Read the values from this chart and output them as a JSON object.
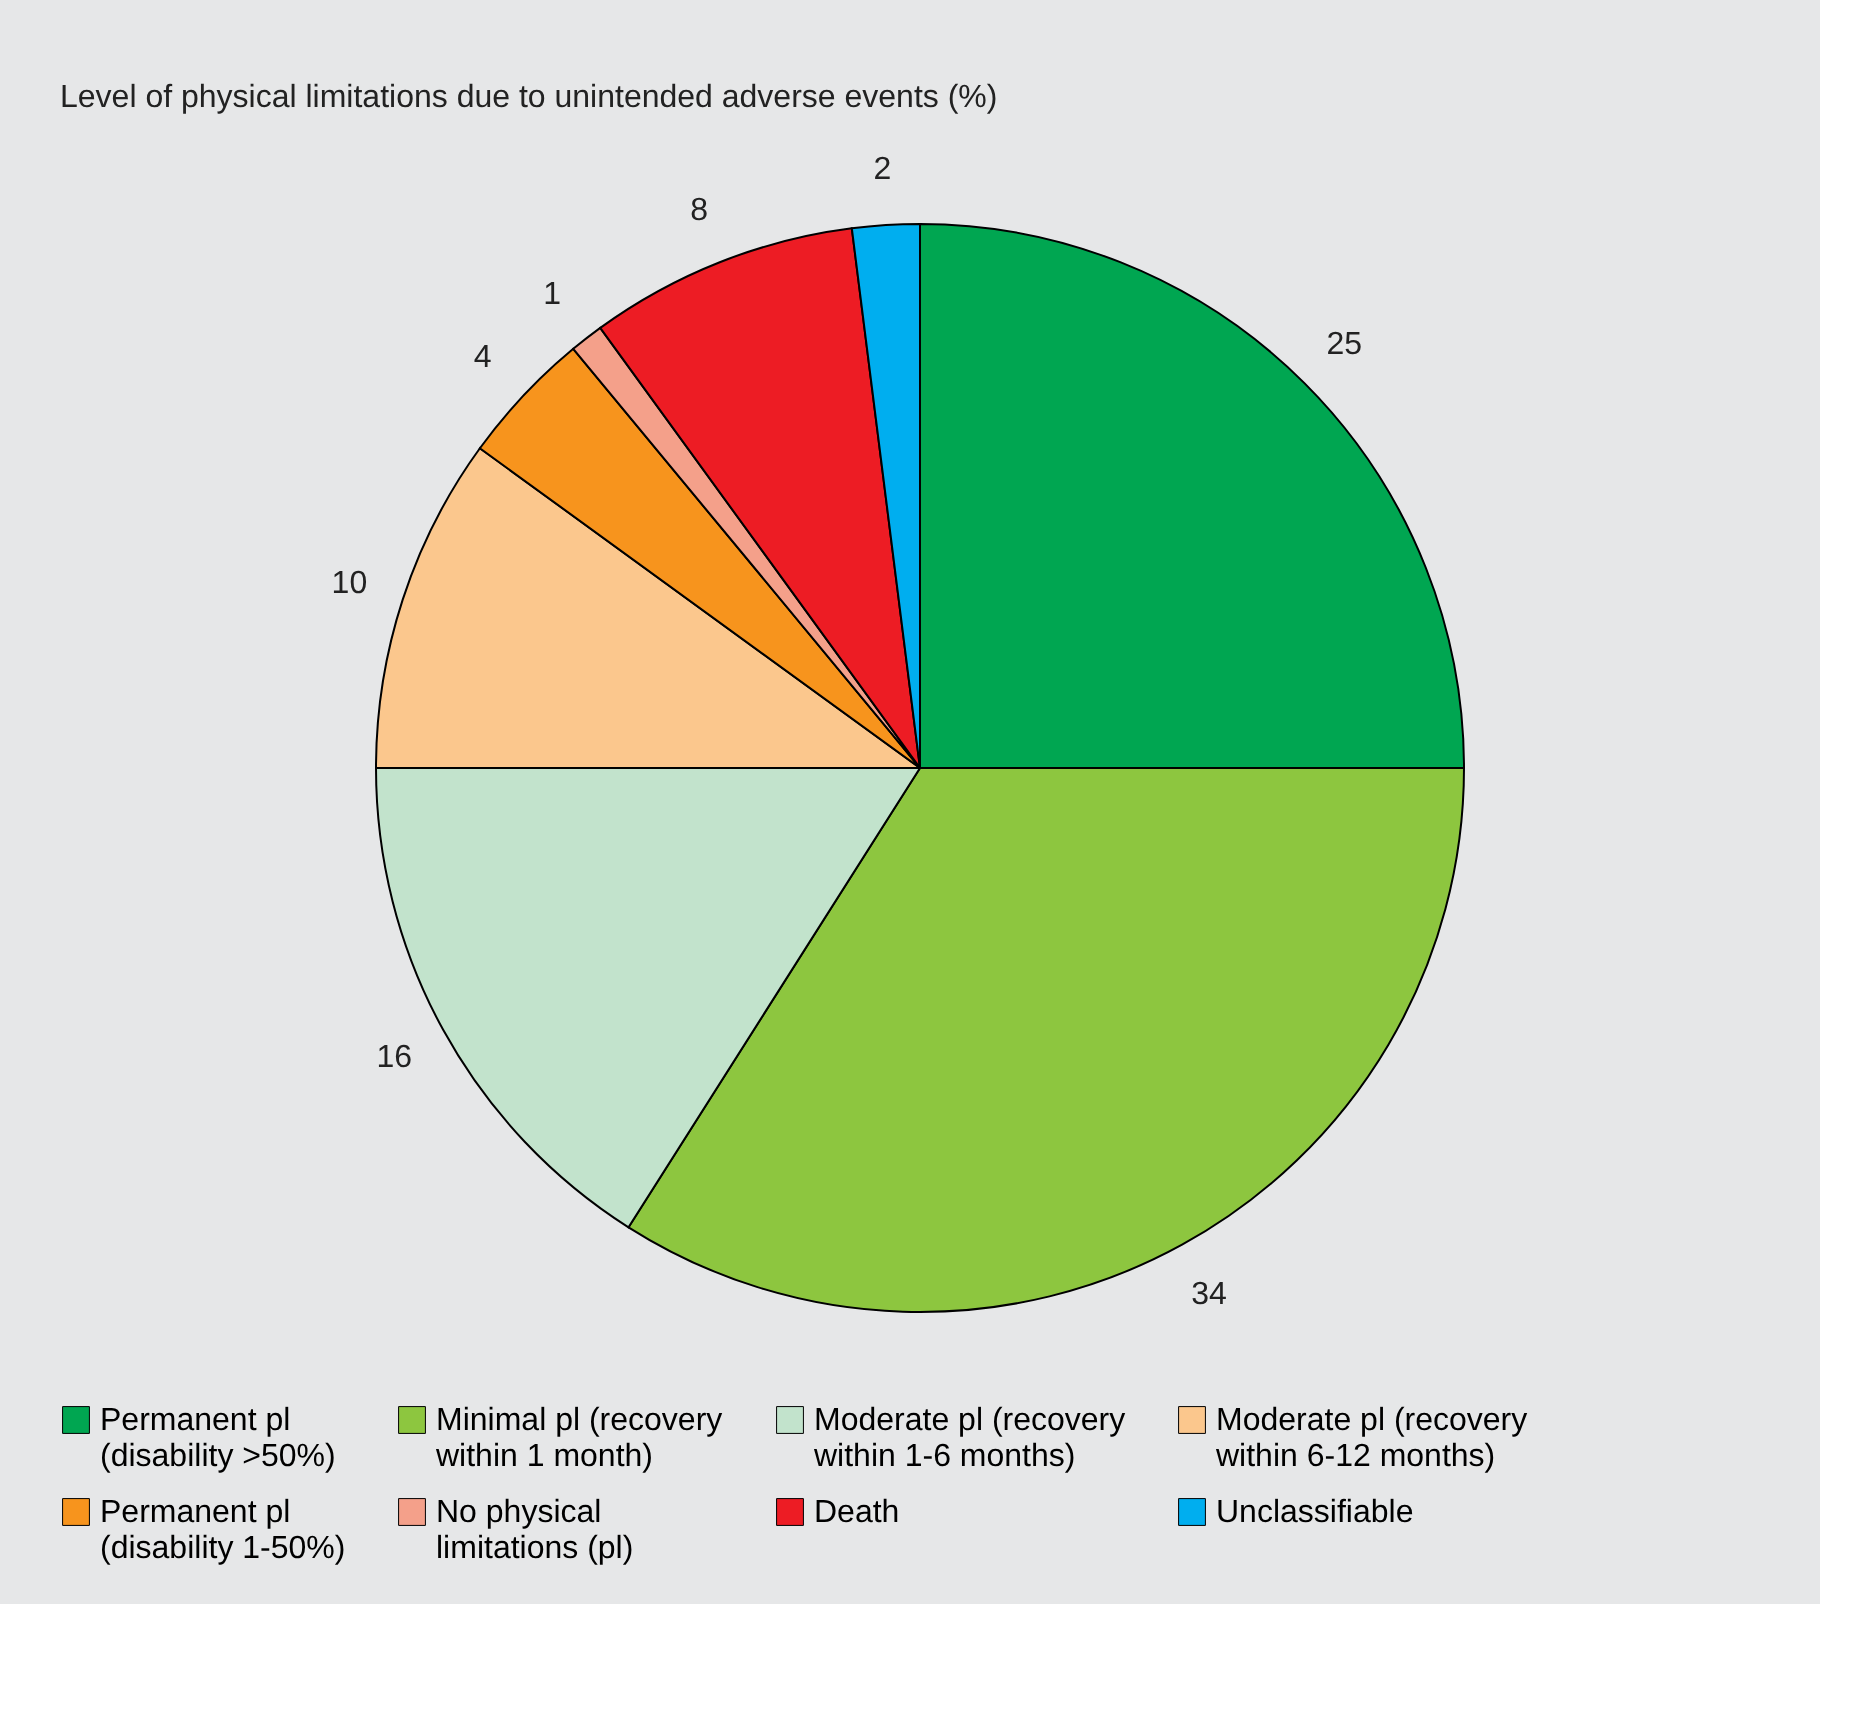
{
  "chart_data": {
    "type": "pie",
    "title": "Level of physical limitations due to unintended adverse events (%)",
    "categories": [
      "Permanent pl (disability >50%)",
      "Minimal pl (recovery within 1 month)",
      "Moderate pl (recovery within 1-6 months)",
      "Moderate pl (recovery within 6-12 months)",
      "Permanent pl (disability 1-50%)",
      "No physical limitations (pl)",
      "Death",
      "Unclassifiable"
    ],
    "values": [
      25,
      34,
      16,
      10,
      4,
      1,
      8,
      2
    ],
    "colors": [
      "#00a651",
      "#8dc63f",
      "#c2e3cc",
      "#fbc78d",
      "#f7941d",
      "#f4a08a",
      "#ed1c24",
      "#00aeef"
    ],
    "data_labels": true,
    "legend": "bottom"
  }
}
